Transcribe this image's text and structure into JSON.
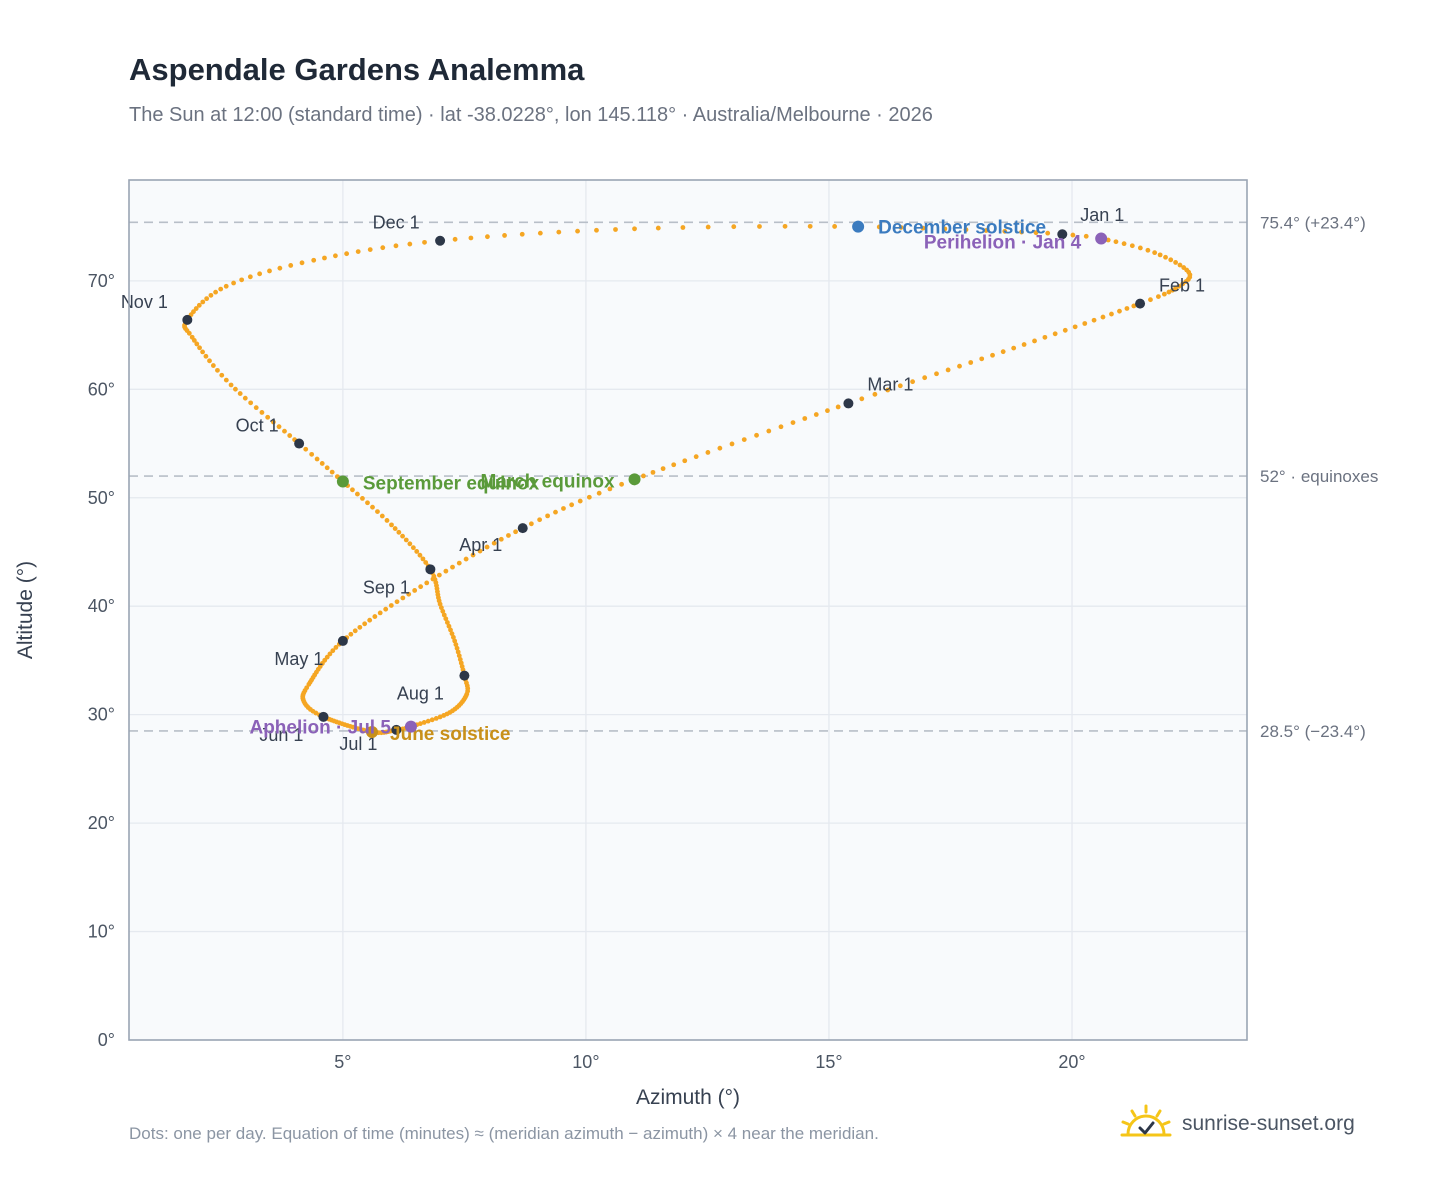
{
  "header": {
    "title": "Aspendale Gardens Analemma",
    "subtitle": "The Sun at 12:00 (standard time) · lat -38.0228°, lon 145.118° · Australia/Melbourne · 2026"
  },
  "footer": {
    "note": "Dots: one per day. Equation of time (minutes) ≈ (meridian azimuth − azimuth) × 4 near the meridian.",
    "brand": "sunrise-sunset.org"
  },
  "colors": {
    "curve": "#f5a623",
    "month_marker": "#2d3748",
    "equinox": "#5a9a3a",
    "december_solstice": "#3b7bbf",
    "june_solstice": "#c8901a",
    "perihelion_aphelion": "#8b62b8",
    "reference_line": "#b8bfc8",
    "grid": "#e5e9ef",
    "plot_bg": "#f8fafc",
    "frame": "#9aa5b4"
  },
  "chart_data": {
    "type": "scatter",
    "xlabel": "Azimuth (°)",
    "ylabel": "Altitude (°)",
    "xlim": [
      0.6,
      23.6
    ],
    "ylim": [
      0,
      79.3
    ],
    "x_ticks": [
      5,
      10,
      15,
      20
    ],
    "x_tick_labels": [
      "5°",
      "10°",
      "15°",
      "20°"
    ],
    "y_ticks": [
      0,
      10,
      20,
      30,
      40,
      50,
      60,
      70
    ],
    "y_tick_labels": [
      "0°",
      "10°",
      "20°",
      "30°",
      "40°",
      "50°",
      "60°",
      "70°"
    ],
    "grid": true,
    "reference_lines": [
      {
        "y": 75.4,
        "label": "75.4° (+23.4°)"
      },
      {
        "y": 52.0,
        "label": "52° · equinoxes"
      },
      {
        "y": 28.5,
        "label": "28.5° (−23.4°)"
      }
    ],
    "daily_points_note": "one point per day of 2026; anchor values listed below, intermediate days follow the curve through them",
    "month_markers": [
      {
        "label": "Jan 1",
        "azimuth": 19.8,
        "altitude": 74.3
      },
      {
        "label": "Feb 1",
        "azimuth": 21.4,
        "altitude": 67.9
      },
      {
        "label": "Mar 1",
        "azimuth": 15.4,
        "altitude": 58.7
      },
      {
        "label": "Apr 1",
        "azimuth": 8.7,
        "altitude": 47.2
      },
      {
        "label": "May 1",
        "azimuth": 5.0,
        "altitude": 36.8
      },
      {
        "label": "Jun 1",
        "azimuth": 4.6,
        "altitude": 29.8
      },
      {
        "label": "Jul 1",
        "azimuth": 6.1,
        "altitude": 28.6
      },
      {
        "label": "Aug 1",
        "azimuth": 7.5,
        "altitude": 33.6
      },
      {
        "label": "Sep 1",
        "azimuth": 6.8,
        "altitude": 43.4
      },
      {
        "label": "Oct 1",
        "azimuth": 4.1,
        "altitude": 55.0
      },
      {
        "label": "Nov 1",
        "azimuth": 1.8,
        "altitude": 66.4
      },
      {
        "label": "Dec 1",
        "azimuth": 7.0,
        "altitude": 73.7
      }
    ],
    "special_points": [
      {
        "label": "March equinox",
        "azimuth": 11.0,
        "altitude": 51.7,
        "kind": "equinox"
      },
      {
        "label": "September equinox",
        "azimuth": 5.0,
        "altitude": 51.5,
        "kind": "equinox"
      },
      {
        "label": "December solstice",
        "azimuth": 15.6,
        "altitude": 75.0,
        "kind": "december_solstice"
      },
      {
        "label": "June solstice",
        "azimuth": 5.6,
        "altitude": 28.4,
        "kind": "june_solstice"
      },
      {
        "label": "Perihelion · Jan 4",
        "azimuth": 20.6,
        "altitude": 73.9,
        "kind": "perihelion_aphelion"
      },
      {
        "label": "Aphelion · Jul 5",
        "azimuth": 6.4,
        "altitude": 28.9,
        "kind": "perihelion_aphelion"
      }
    ],
    "curve_anchors": [
      {
        "day": 0,
        "azimuth": 19.8,
        "altitude": 74.3
      },
      {
        "day": 3,
        "azimuth": 20.6,
        "altitude": 73.9
      },
      {
        "day": 10,
        "azimuth": 21.7,
        "altitude": 72.6
      },
      {
        "day": 18,
        "azimuth": 22.4,
        "altitude": 70.8
      },
      {
        "day": 24,
        "azimuth": 22.2,
        "altitude": 69.5
      },
      {
        "day": 31,
        "azimuth": 21.4,
        "altitude": 67.9
      },
      {
        "day": 45,
        "azimuth": 18.8,
        "altitude": 63.8
      },
      {
        "day": 59,
        "azimuth": 15.4,
        "altitude": 58.7
      },
      {
        "day": 78,
        "azimuth": 11.0,
        "altitude": 51.7
      },
      {
        "day": 90,
        "azimuth": 8.7,
        "altitude": 47.2
      },
      {
        "day": 105,
        "azimuth": 6.6,
        "altitude": 41.8
      },
      {
        "day": 120,
        "azimuth": 5.0,
        "altitude": 36.8
      },
      {
        "day": 135,
        "azimuth": 4.3,
        "altitude": 32.8
      },
      {
        "day": 143,
        "azimuth": 4.2,
        "altitude": 31.2
      },
      {
        "day": 151,
        "azimuth": 4.6,
        "altitude": 29.8
      },
      {
        "day": 171,
        "azimuth": 5.6,
        "altitude": 28.4
      },
      {
        "day": 181,
        "azimuth": 6.1,
        "altitude": 28.6
      },
      {
        "day": 185,
        "azimuth": 6.4,
        "altitude": 28.9
      },
      {
        "day": 196,
        "azimuth": 7.2,
        "altitude": 30.2
      },
      {
        "day": 206,
        "azimuth": 7.55,
        "altitude": 31.9
      },
      {
        "day": 212,
        "azimuth": 7.5,
        "altitude": 33.6
      },
      {
        "day": 222,
        "azimuth": 7.3,
        "altitude": 36.8
      },
      {
        "day": 232,
        "azimuth": 7.0,
        "altitude": 40.2
      },
      {
        "day": 243,
        "azimuth": 6.8,
        "altitude": 43.4
      },
      {
        "day": 255,
        "azimuth": 6.0,
        "altitude": 47.5
      },
      {
        "day": 265,
        "azimuth": 5.0,
        "altitude": 51.5
      },
      {
        "day": 273,
        "azimuth": 4.1,
        "altitude": 55.0
      },
      {
        "day": 286,
        "azimuth": 2.7,
        "altitude": 60.4
      },
      {
        "day": 297,
        "azimuth": 1.9,
        "altitude": 64.8
      },
      {
        "day": 304,
        "azimuth": 1.8,
        "altitude": 66.4
      },
      {
        "day": 315,
        "azimuth": 2.6,
        "altitude": 69.5
      },
      {
        "day": 324,
        "azimuth": 4.4,
        "altitude": 71.9
      },
      {
        "day": 334,
        "azimuth": 7.0,
        "altitude": 73.7
      },
      {
        "day": 345,
        "azimuth": 11.0,
        "altitude": 74.8
      },
      {
        "day": 354,
        "azimuth": 15.6,
        "altitude": 75.0
      },
      {
        "day": 364,
        "azimuth": 19.5,
        "altitude": 74.4
      }
    ]
  }
}
